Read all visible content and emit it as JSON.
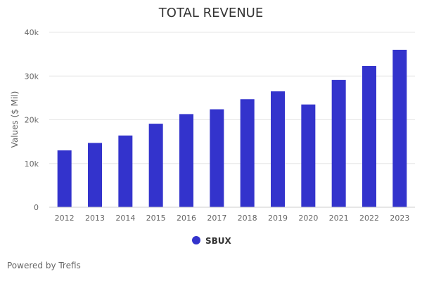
{
  "chart_data": {
    "type": "bar",
    "title": "TOTAL REVENUE",
    "ylabel": "Values ($ Mil)",
    "xlabel": "",
    "categories": [
      "2012",
      "2013",
      "2014",
      "2015",
      "2016",
      "2017",
      "2018",
      "2019",
      "2020",
      "2021",
      "2022",
      "2023"
    ],
    "series": [
      {
        "name": "SBUX",
        "color": "#3333cc",
        "values": [
          13000,
          14700,
          16400,
          19100,
          21300,
          22400,
          24700,
          26500,
          23500,
          29100,
          32300,
          36000
        ]
      }
    ],
    "ylim": [
      0,
      40000
    ],
    "yticks": [
      {
        "value": 0,
        "label": "0"
      },
      {
        "value": 10000,
        "label": "10k"
      },
      {
        "value": 20000,
        "label": "20k"
      },
      {
        "value": 30000,
        "label": "30k"
      },
      {
        "value": 40000,
        "label": "40k"
      }
    ],
    "grid": true,
    "legend_position": "bottom-center"
  },
  "credit": "Powered by Trefis"
}
